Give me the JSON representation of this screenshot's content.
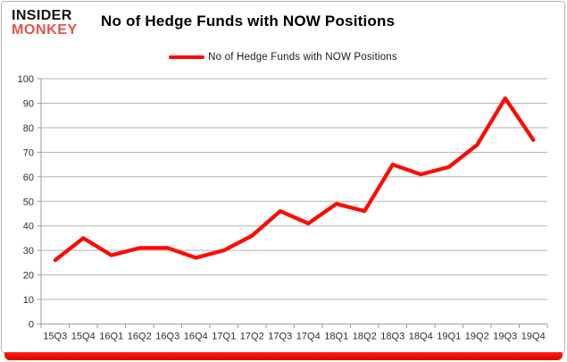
{
  "brand": {
    "line1": "INSIDER",
    "line2": "MONKEY"
  },
  "header": {
    "title": "No of Hedge Funds with NOW Positions"
  },
  "legend": {
    "label": "No of Hedge Funds with NOW Positions"
  },
  "colors": {
    "series": "#fe0a00",
    "grid": "#b3b3b3",
    "axis": "#9e9e9e",
    "tick_text": "#2e2e2e",
    "brand_black": "#151413",
    "brand_red": "#e2544a",
    "bottom_bar": "#ee0d04"
  },
  "chart_data": {
    "type": "line",
    "title": "No of Hedge Funds with NOW Positions",
    "categories": [
      "15Q3",
      "15Q4",
      "16Q1",
      "16Q2",
      "16Q3",
      "16Q4",
      "17Q1",
      "17Q2",
      "17Q3",
      "17Q4",
      "18Q1",
      "18Q2",
      "18Q3",
      "18Q4",
      "19Q1",
      "19Q2",
      "19Q3",
      "19Q4"
    ],
    "series": [
      {
        "name": "No of Hedge Funds with NOW Positions",
        "color": "#fe0a00",
        "values": [
          26,
          35,
          28,
          31,
          31,
          27,
          30,
          36,
          46,
          41,
          49,
          46,
          65,
          61,
          64,
          73,
          92,
          75
        ]
      }
    ],
    "xlabel": "",
    "ylabel": "",
    "ylim": [
      0,
      100
    ],
    "ytick_step": 10,
    "grid": true,
    "legend_position": "top-center"
  }
}
